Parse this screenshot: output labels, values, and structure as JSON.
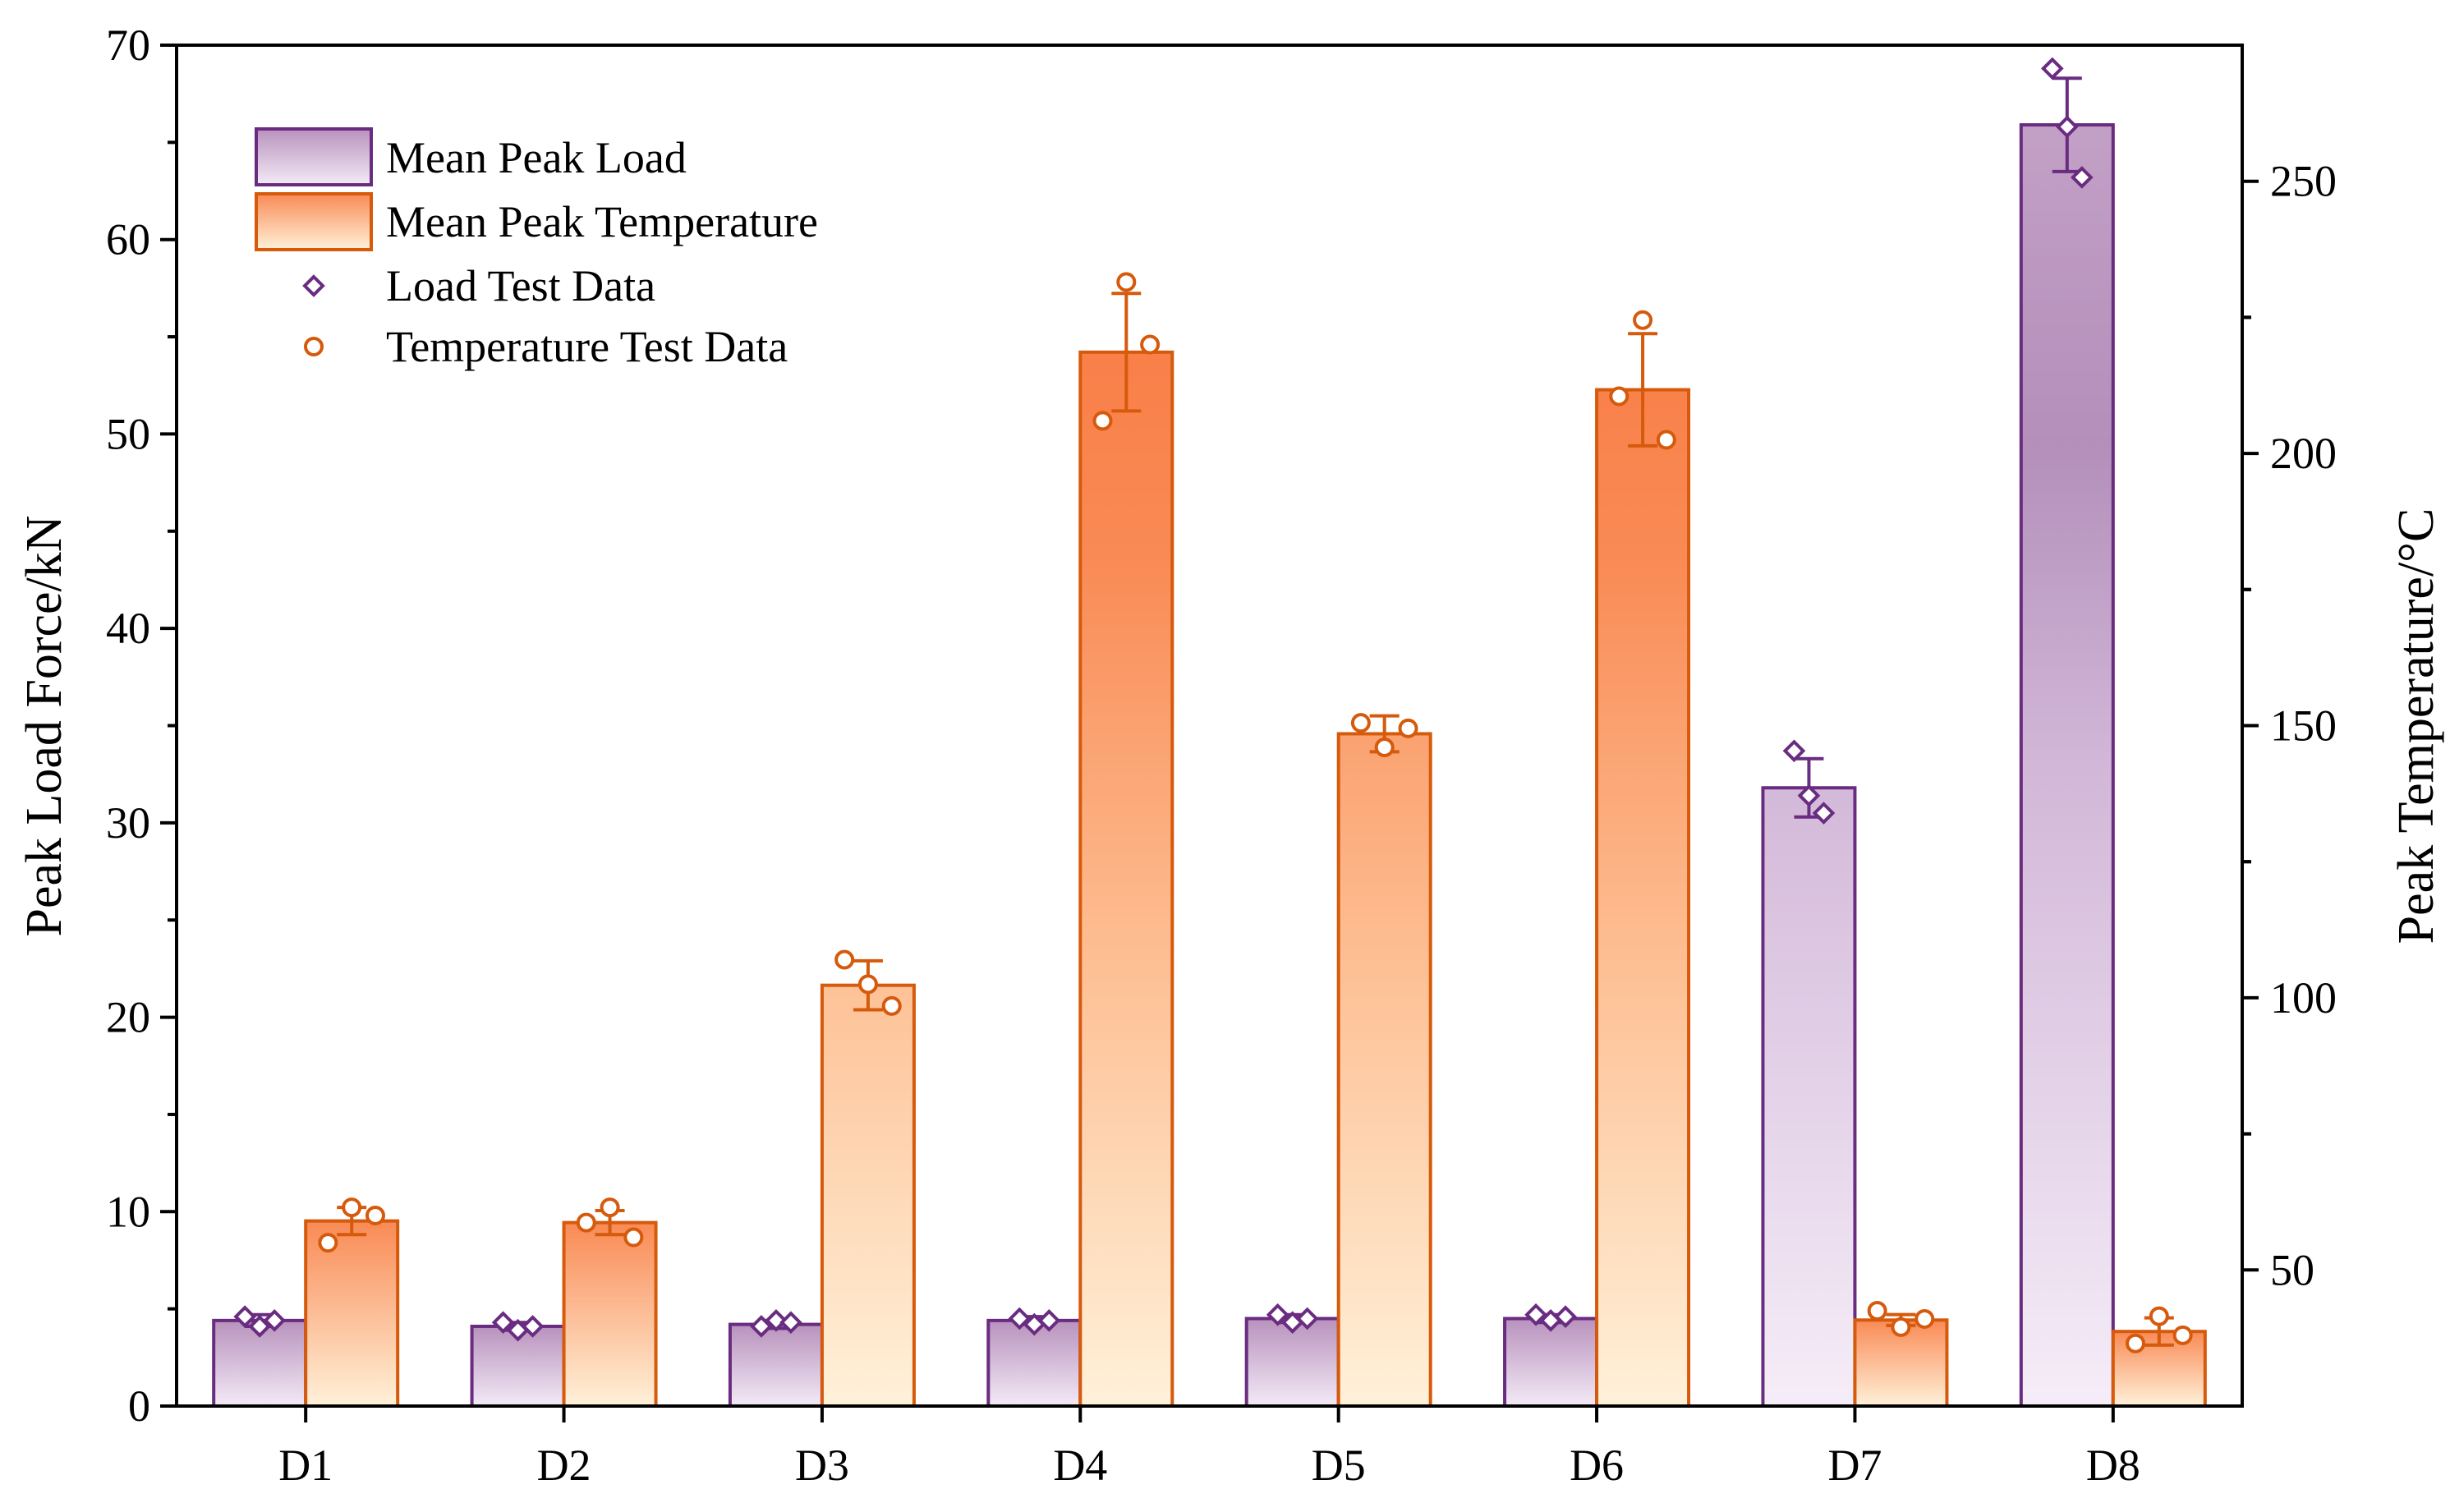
{
  "chart_data": {
    "type": "bar",
    "categories": [
      "D1",
      "D2",
      "D3",
      "D4",
      "D5",
      "D6",
      "D7",
      "D8"
    ],
    "ylabel": "Peak Load Force/kN",
    "y2label": "Peak Temperature/°C",
    "ylim": [
      0,
      70
    ],
    "y2lim": [
      25,
      275
    ],
    "yticks": [
      0,
      10,
      20,
      30,
      40,
      50,
      60,
      70
    ],
    "y2ticks": [
      50,
      100,
      150,
      200,
      250
    ],
    "legend_position": "top-left",
    "grid": false,
    "legend": {
      "load_bar": "Mean Peak Load",
      "temp_bar": "Mean Peak Temperature",
      "load_points": "Load Test Data",
      "temp_points": "Temperature Test Data"
    },
    "series": [
      {
        "name": "Mean Peak Load",
        "axis": "left",
        "values": [
          4.4,
          4.1,
          4.2,
          4.4,
          4.5,
          4.5,
          31.8,
          65.9
        ],
        "error": [
          0.3,
          0.2,
          0.2,
          0.2,
          0.2,
          0.2,
          1.5,
          2.4
        ],
        "color": "#6a2c80"
      },
      {
        "name": "Mean Peak Temperature",
        "axis": "right",
        "values": [
          59,
          58.7,
          102.3,
          218.6,
          148.5,
          211.7,
          40.8,
          38.7
        ],
        "error": [
          2.5,
          2.2,
          4.5,
          10.8,
          3.3,
          10.3,
          1.0,
          2.5
        ],
        "color": "#d55a0c"
      },
      {
        "name": "Load Test Data",
        "axis": "left",
        "points": [
          [
            4.6,
            4.1,
            4.4
          ],
          [
            4.3,
            3.9,
            4.1
          ],
          [
            4.1,
            4.4,
            4.3
          ],
          [
            4.5,
            4.2,
            4.4
          ],
          [
            4.7,
            4.3,
            4.5
          ],
          [
            4.7,
            4.4,
            4.6
          ],
          [
            33.7,
            31.4,
            30.5
          ],
          [
            68.8,
            65.8,
            63.2
          ]
        ]
      },
      {
        "name": "Temperature Test Data",
        "axis": "right",
        "points": [
          [
            55,
            61.5,
            60
          ],
          [
            58.7,
            61.5,
            56
          ],
          [
            107,
            102.5,
            98.5
          ],
          [
            206,
            231.5,
            220
          ],
          [
            150.5,
            146,
            149.5
          ],
          [
            210.5,
            224.5,
            202.5
          ],
          [
            42.5,
            39.5,
            41
          ],
          [
            36.5,
            41.5,
            38
          ]
        ]
      }
    ]
  }
}
